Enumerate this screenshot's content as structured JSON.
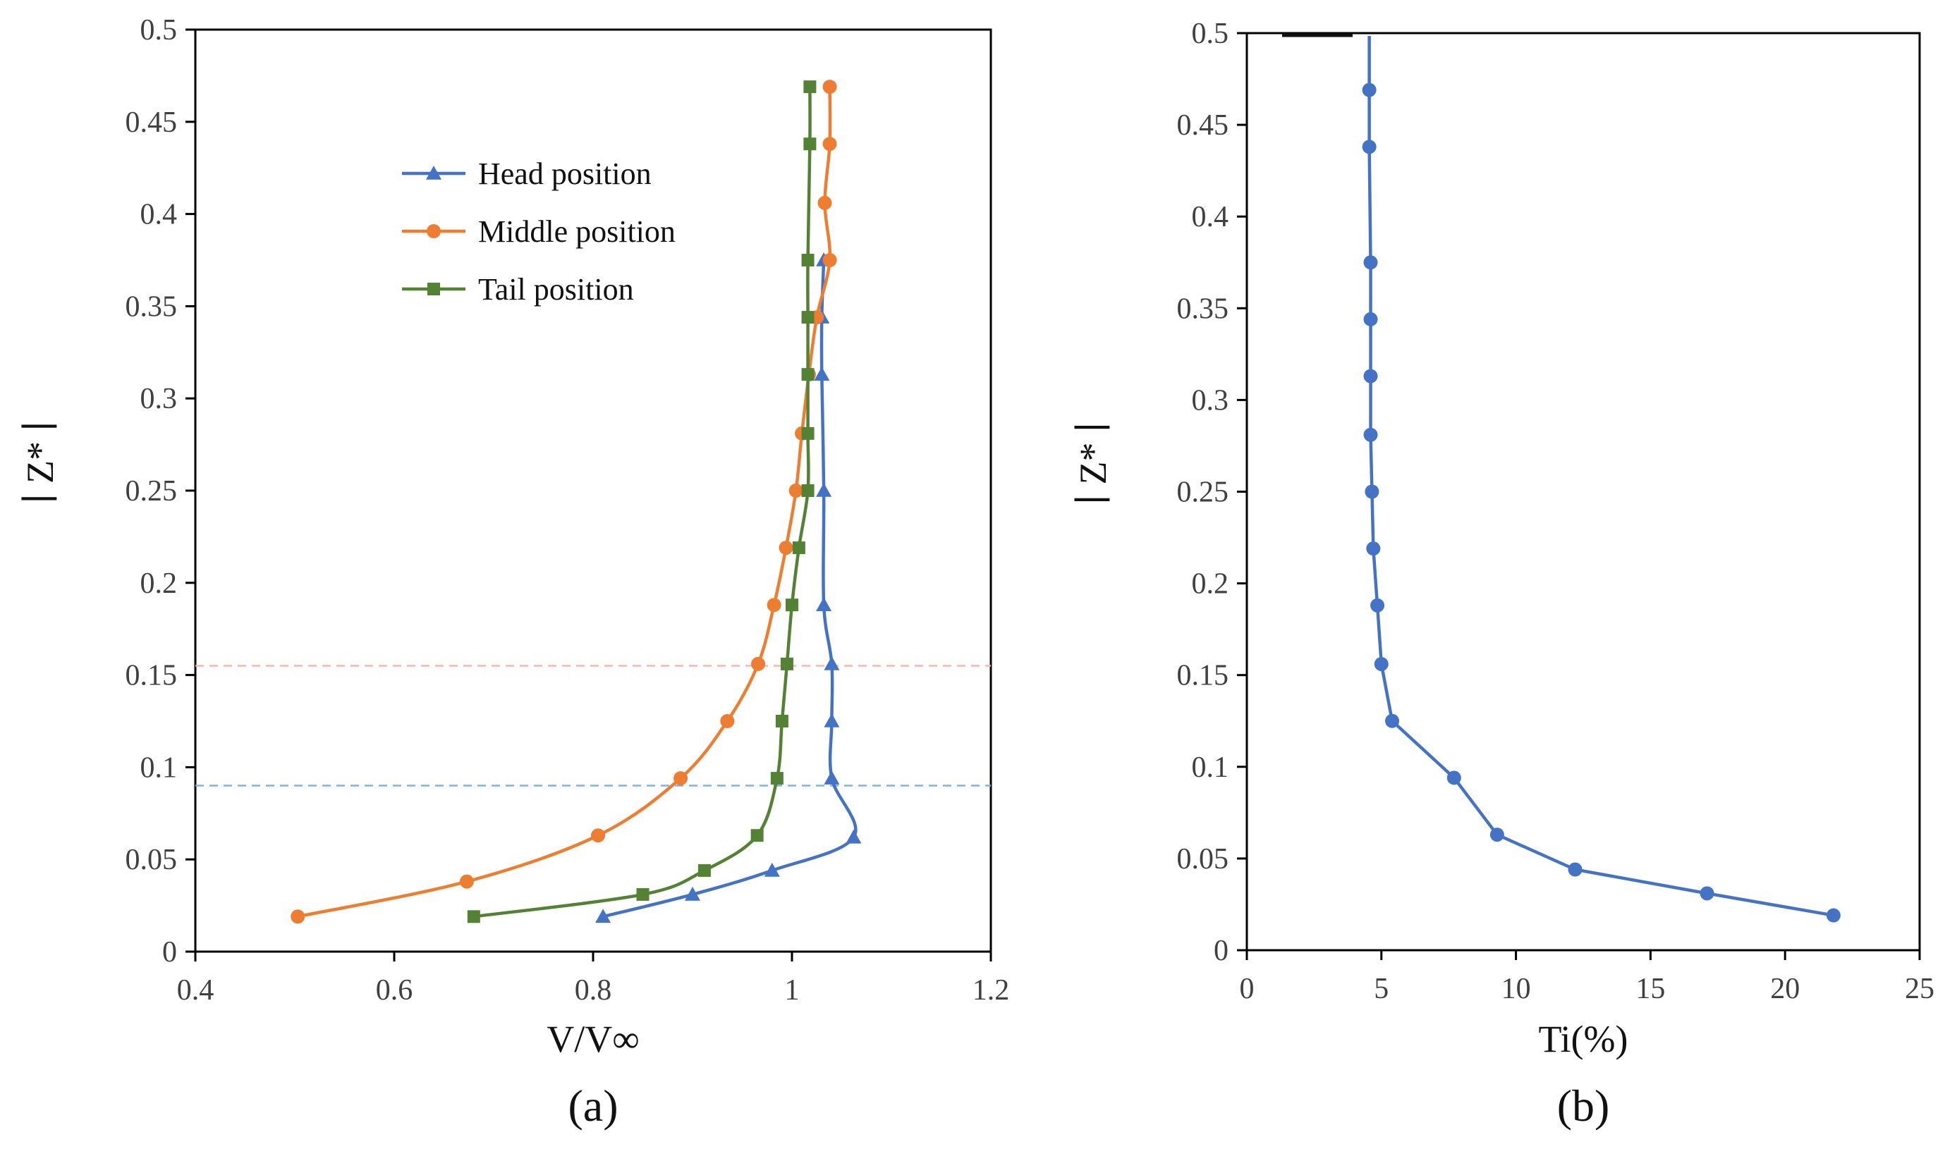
{
  "chart_data": [
    {
      "type": "line",
      "panel_label": "(a)",
      "xlabel": "V/V∞",
      "ylabel": "∣ Z* ∣",
      "xlim": [
        0.4,
        1.2
      ],
      "ylim": [
        0,
        0.5
      ],
      "xticks": [
        "0.4",
        "0.6",
        "0.8",
        "1",
        "1.2"
      ],
      "yticks": [
        "0",
        "0.05",
        "0.1",
        "0.15",
        "0.2",
        "0.25",
        "0.3",
        "0.35",
        "0.4",
        "0.45",
        "0.5"
      ],
      "grid": false,
      "legend": "top-left",
      "reference_lines": [
        {
          "y": 0.155,
          "color": "#f4b8b0",
          "style": "dashed"
        },
        {
          "y": 0.09,
          "color": "#7fb2e6",
          "style": "dashed"
        }
      ],
      "series": [
        {
          "name": "Head position",
          "color": "#4472c4",
          "marker": "triangle",
          "x": [
            0.81,
            0.9,
            0.98,
            1.062,
            1.04,
            1.04,
            1.04,
            1.032,
            1.032,
            1.03,
            1.03,
            1.032
          ],
          "y": [
            0.019,
            0.031,
            0.044,
            0.062,
            0.094,
            0.125,
            0.156,
            0.188,
            0.25,
            0.313,
            0.344,
            0.375
          ]
        },
        {
          "name": "Middle position",
          "color": "#ed7d31",
          "marker": "circle",
          "x": [
            0.503,
            0.673,
            0.805,
            0.888,
            0.935,
            0.966,
            0.982,
            0.994,
            1.004,
            1.01,
            1.017,
            1.025,
            1.038,
            1.033,
            1.038,
            1.038
          ],
          "y": [
            0.019,
            0.038,
            0.063,
            0.094,
            0.125,
            0.156,
            0.188,
            0.219,
            0.25,
            0.281,
            0.313,
            0.344,
            0.375,
            0.406,
            0.438,
            0.469
          ]
        },
        {
          "name": "Tail position",
          "color": "#548235",
          "marker": "square",
          "x": [
            0.68,
            0.85,
            0.912,
            0.965,
            0.985,
            0.99,
            0.995,
            1.0,
            1.007,
            1.016,
            1.016,
            1.016,
            1.016,
            1.016,
            1.018,
            1.018
          ],
          "y": [
            0.019,
            0.031,
            0.044,
            0.063,
            0.094,
            0.125,
            0.156,
            0.188,
            0.219,
            0.25,
            0.281,
            0.313,
            0.344,
            0.375,
            0.438,
            0.469
          ]
        }
      ]
    },
    {
      "type": "line",
      "panel_label": "(b)",
      "xlabel": "Ti(%)",
      "ylabel": "∣ Z* ∣",
      "xlim": [
        0,
        25
      ],
      "ylim": [
        0,
        0.5
      ],
      "xticks": [
        "0",
        "5",
        "10",
        "15",
        "20",
        "25"
      ],
      "yticks": [
        "0",
        "0.05",
        "0.1",
        "0.15",
        "0.2",
        "0.25",
        "0.3",
        "0.35",
        "0.4",
        "0.45",
        "0.5"
      ],
      "grid": false,
      "series": [
        {
          "color": "#4472c4",
          "marker": "circle",
          "x": [
            21.8,
            17.1,
            12.2,
            9.3,
            7.7,
            5.4,
            5.0,
            4.85,
            4.7,
            4.65,
            4.6,
            4.6,
            4.6,
            4.6,
            4.55,
            4.55
          ],
          "y": [
            0.019,
            0.031,
            0.044,
            0.063,
            0.094,
            0.125,
            0.156,
            0.188,
            0.219,
            0.25,
            0.281,
            0.313,
            0.344,
            0.375,
            0.438,
            0.469
          ]
        }
      ]
    }
  ]
}
